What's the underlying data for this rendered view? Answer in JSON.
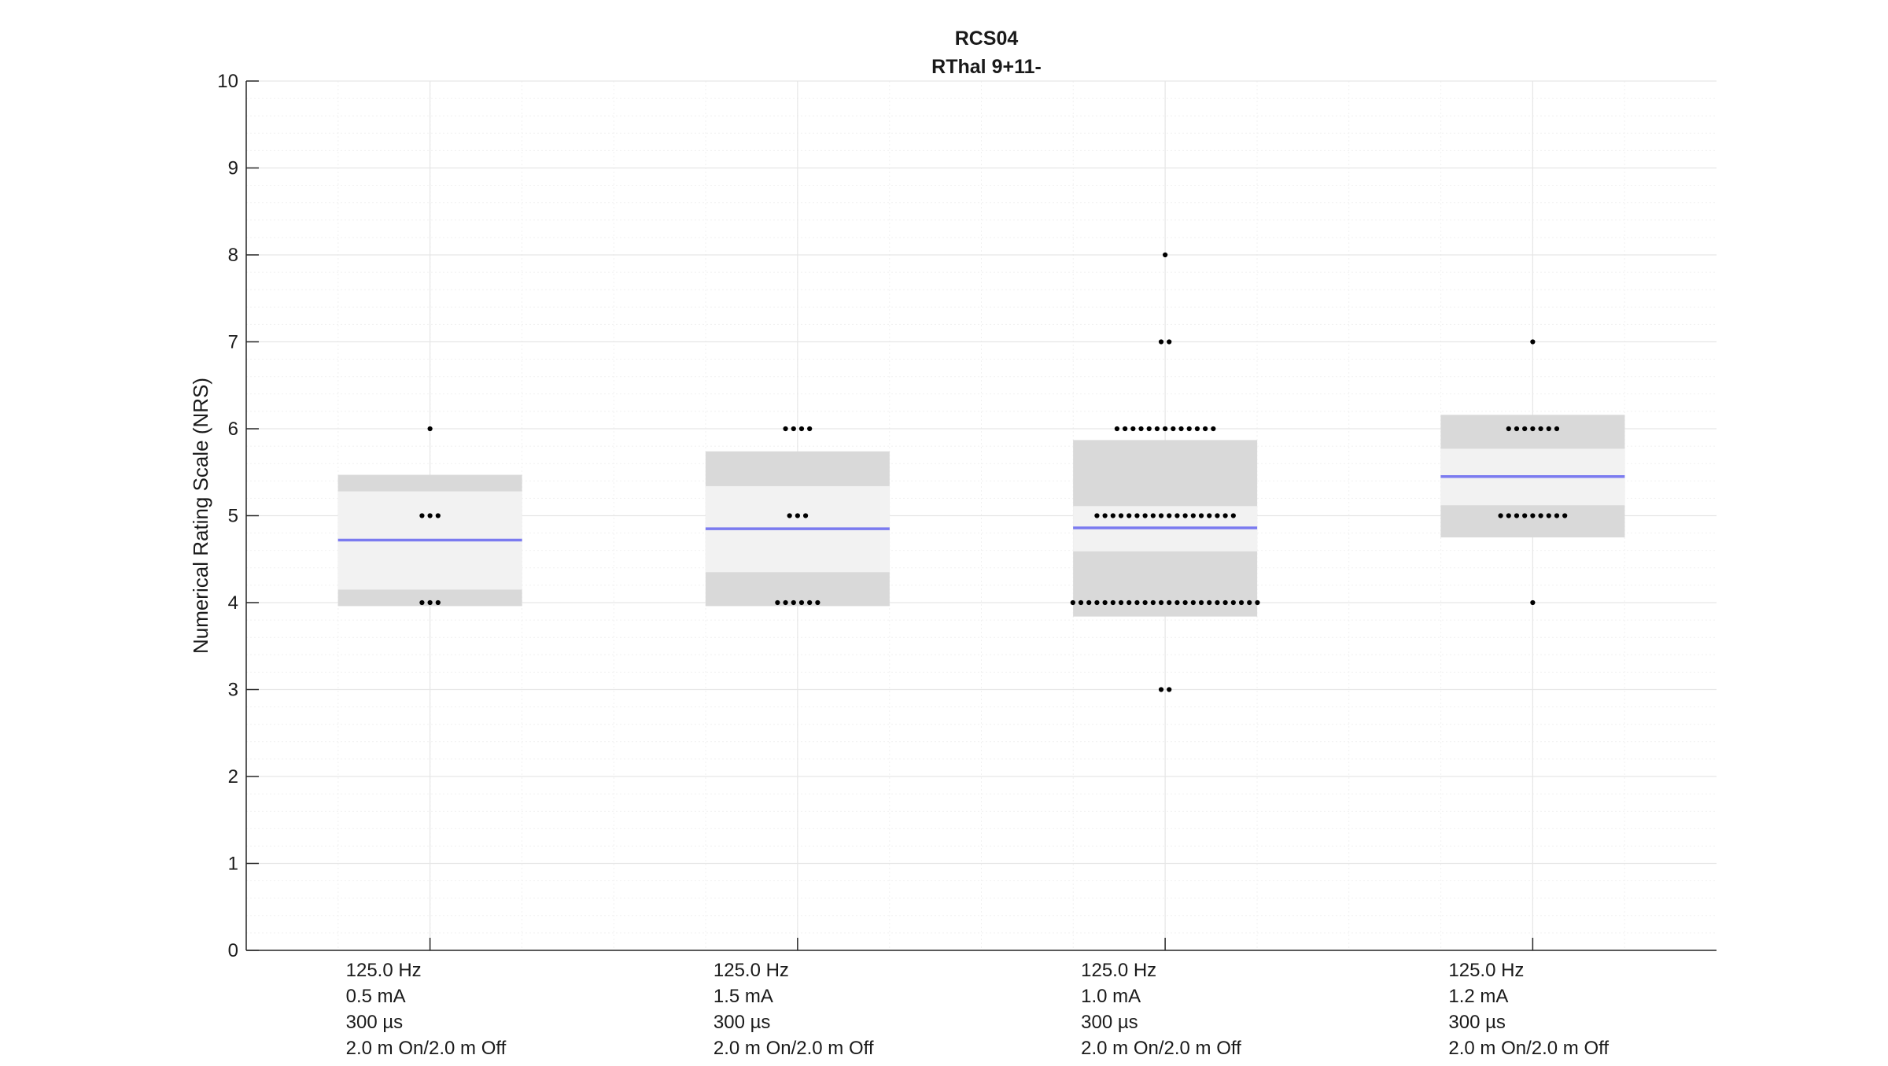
{
  "chart_data": {
    "type": "scatter",
    "title": "RCS04",
    "subtitle": "RThal 9+11-",
    "xlabel": "",
    "ylabel": "Numerical Rating Scale (NRS)",
    "ylim": [
      0,
      10
    ],
    "yticks": [
      0,
      1,
      2,
      3,
      4,
      5,
      6,
      7,
      8,
      9,
      10
    ],
    "grid": true,
    "minor_grid": true,
    "colors": {
      "mean_line": "#7b7bf0",
      "inner_band": "#f2f2f2",
      "outer_band": "#d9d9d9",
      "points": "#000000",
      "axis": "#262626",
      "grid": "#e6e6e6"
    },
    "conditions": [
      {
        "label_lines": [
          "125.0 Hz",
          "0.5 mA",
          "300 µs",
          "2.0 m On/2.0 m Off"
        ],
        "mean": 4.72,
        "inner_band": [
          4.15,
          5.28
        ],
        "outer_band": [
          3.96,
          5.47
        ],
        "points": [
          {
            "y": 6,
            "count": 1
          },
          {
            "y": 5,
            "count": 3
          },
          {
            "y": 4,
            "count": 3
          }
        ]
      },
      {
        "label_lines": [
          "125.0 Hz",
          "1.5 mA",
          "300 µs",
          "2.0 m On/2.0 m Off"
        ],
        "mean": 4.85,
        "inner_band": [
          4.35,
          5.34
        ],
        "outer_band": [
          3.96,
          5.74
        ],
        "points": [
          {
            "y": 6,
            "count": 4
          },
          {
            "y": 5,
            "count": 3
          },
          {
            "y": 4,
            "count": 6
          }
        ]
      },
      {
        "label_lines": [
          "125.0 Hz",
          "1.0 mA",
          "300 µs",
          "2.0 m On/2.0 m Off"
        ],
        "mean": 4.86,
        "inner_band": [
          4.59,
          5.11
        ],
        "outer_band": [
          3.84,
          5.87
        ],
        "points": [
          {
            "y": 8,
            "count": 1
          },
          {
            "y": 7,
            "count": 2
          },
          {
            "y": 6,
            "count": 13
          },
          {
            "y": 5,
            "count": 18
          },
          {
            "y": 4,
            "count": 24
          },
          {
            "y": 3,
            "count": 2
          }
        ]
      },
      {
        "label_lines": [
          "125.0 Hz",
          "1.2 mA",
          "300 µs",
          "2.0 m On/2.0 m Off"
        ],
        "mean": 5.45,
        "inner_band": [
          5.12,
          5.77
        ],
        "outer_band": [
          4.75,
          6.16
        ],
        "points": [
          {
            "y": 7,
            "count": 1
          },
          {
            "y": 6,
            "count": 7
          },
          {
            "y": 5,
            "count": 9
          },
          {
            "y": 4,
            "count": 1
          }
        ]
      }
    ]
  }
}
